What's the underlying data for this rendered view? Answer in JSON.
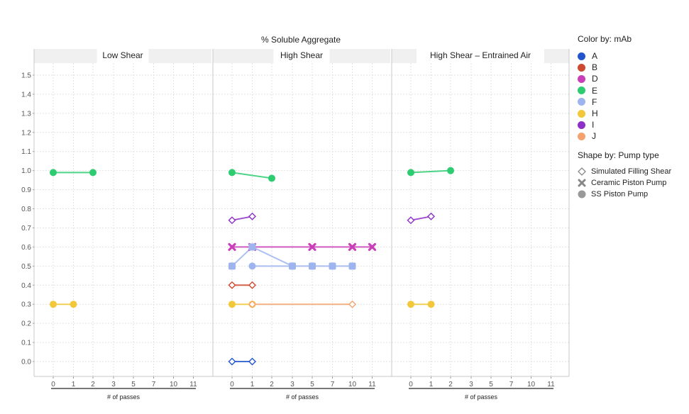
{
  "chart_data": {
    "type": "scatter",
    "title": "% Soluble Aggregate",
    "xlabel": "# of passes",
    "ylabel": "",
    "ylim": [
      -0.08,
      1.58
    ],
    "y_ticks": [
      "0.0",
      "0.1",
      "0.2",
      "0.3",
      "0.4",
      "0.5",
      "0.6",
      "0.7",
      "0.8",
      "0.9",
      "1.0",
      "1.1",
      "1.2",
      "1.3",
      "1.4",
      "1.5"
    ],
    "x_ticks": [
      "0",
      "1",
      "2",
      "3",
      "5",
      "7",
      "10",
      "11"
    ],
    "panels": [
      "Low Shear",
      "High Shear",
      "High Shear – Entrained Air"
    ],
    "legend_color": {
      "title": "Color by: mAb",
      "items": [
        {
          "label": "A",
          "color": "#2255cc"
        },
        {
          "label": "B",
          "color": "#cc4a30"
        },
        {
          "label": "D",
          "color": "#c93fb8"
        },
        {
          "label": "E",
          "color": "#2ecc71"
        },
        {
          "label": "F",
          "color": "#9db4ef"
        },
        {
          "label": "H",
          "color": "#f2c83a"
        },
        {
          "label": "I",
          "color": "#8e2fc8"
        },
        {
          "label": "J",
          "color": "#f5a36e"
        }
      ]
    },
    "legend_shape": {
      "title": "Shape by: Pump type",
      "items": [
        {
          "label": "Simulated Filling Shear",
          "shape": "diamond-open"
        },
        {
          "label": "Ceramic Piston Pump",
          "shape": "cross"
        },
        {
          "label": "SS Piston Pump",
          "shape": "circle"
        }
      ]
    },
    "series": [
      {
        "panel": 0,
        "mab": "E",
        "shape": "circle",
        "x": [
          "0",
          "2"
        ],
        "y": [
          0.99,
          0.99
        ]
      },
      {
        "panel": 0,
        "mab": "H",
        "shape": "circle",
        "x": [
          "0",
          "1"
        ],
        "y": [
          0.3,
          0.3
        ]
      },
      {
        "panel": 1,
        "mab": "E",
        "shape": "circle",
        "x": [
          "0",
          "2"
        ],
        "y": [
          0.99,
          0.96
        ]
      },
      {
        "panel": 1,
        "mab": "I",
        "shape": "diamond-open",
        "x": [
          "0",
          "1"
        ],
        "y": [
          0.74,
          0.76
        ]
      },
      {
        "panel": 1,
        "mab": "D",
        "shape": "cross",
        "x": [
          "0",
          "1",
          "5",
          "10",
          "11"
        ],
        "y": [
          0.6,
          0.6,
          0.6,
          0.6,
          0.6
        ]
      },
      {
        "panel": 1,
        "mab": "F",
        "shape": "cross",
        "x": [
          "0",
          "1",
          "3",
          "5",
          "7",
          "10"
        ],
        "y": [
          0.5,
          0.6,
          0.5,
          0.5,
          0.5,
          0.5
        ]
      },
      {
        "panel": 1,
        "mab": "F",
        "shape": "circle",
        "x": [
          "1",
          "3"
        ],
        "y": [
          0.5,
          0.5
        ]
      },
      {
        "panel": 1,
        "mab": "B",
        "shape": "diamond-open",
        "x": [
          "0",
          "1"
        ],
        "y": [
          0.4,
          0.4
        ]
      },
      {
        "panel": 1,
        "mab": "H",
        "shape": "circle",
        "x": [
          "0",
          "1"
        ],
        "y": [
          0.3,
          0.3
        ]
      },
      {
        "panel": 1,
        "mab": "J",
        "shape": "diamond-open",
        "x": [
          "1",
          "10"
        ],
        "y": [
          0.3,
          0.3
        ]
      },
      {
        "panel": 1,
        "mab": "A",
        "shape": "diamond-open",
        "x": [
          "0",
          "1"
        ],
        "y": [
          0.0,
          0.0
        ]
      },
      {
        "panel": 2,
        "mab": "E",
        "shape": "circle",
        "x": [
          "0",
          "2"
        ],
        "y": [
          0.99,
          1.0
        ]
      },
      {
        "panel": 2,
        "mab": "I",
        "shape": "diamond-open",
        "x": [
          "0",
          "1"
        ],
        "y": [
          0.74,
          0.76
        ]
      },
      {
        "panel": 2,
        "mab": "H",
        "shape": "circle",
        "x": [
          "0",
          "1"
        ],
        "y": [
          0.3,
          0.3
        ]
      }
    ]
  }
}
